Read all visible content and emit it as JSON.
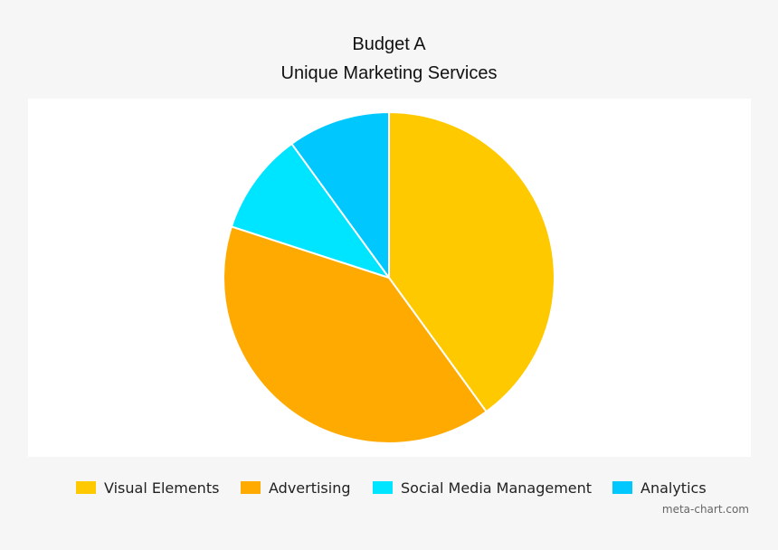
{
  "chart_data": {
    "type": "pie",
    "title": "Budget A",
    "subtitle": "Unique Marketing Services",
    "legend_position": "bottom",
    "slices": [
      {
        "label": "Visual Elements",
        "value": 40,
        "color": "#ffc900"
      },
      {
        "label": "Advertising",
        "value": 40,
        "color": "#ffaa00"
      },
      {
        "label": "Social Media Management",
        "value": 10,
        "color": "#00e5ff"
      },
      {
        "label": "Analytics",
        "value": 10,
        "color": "#00c8ff"
      }
    ]
  },
  "credit": "meta-chart.com"
}
